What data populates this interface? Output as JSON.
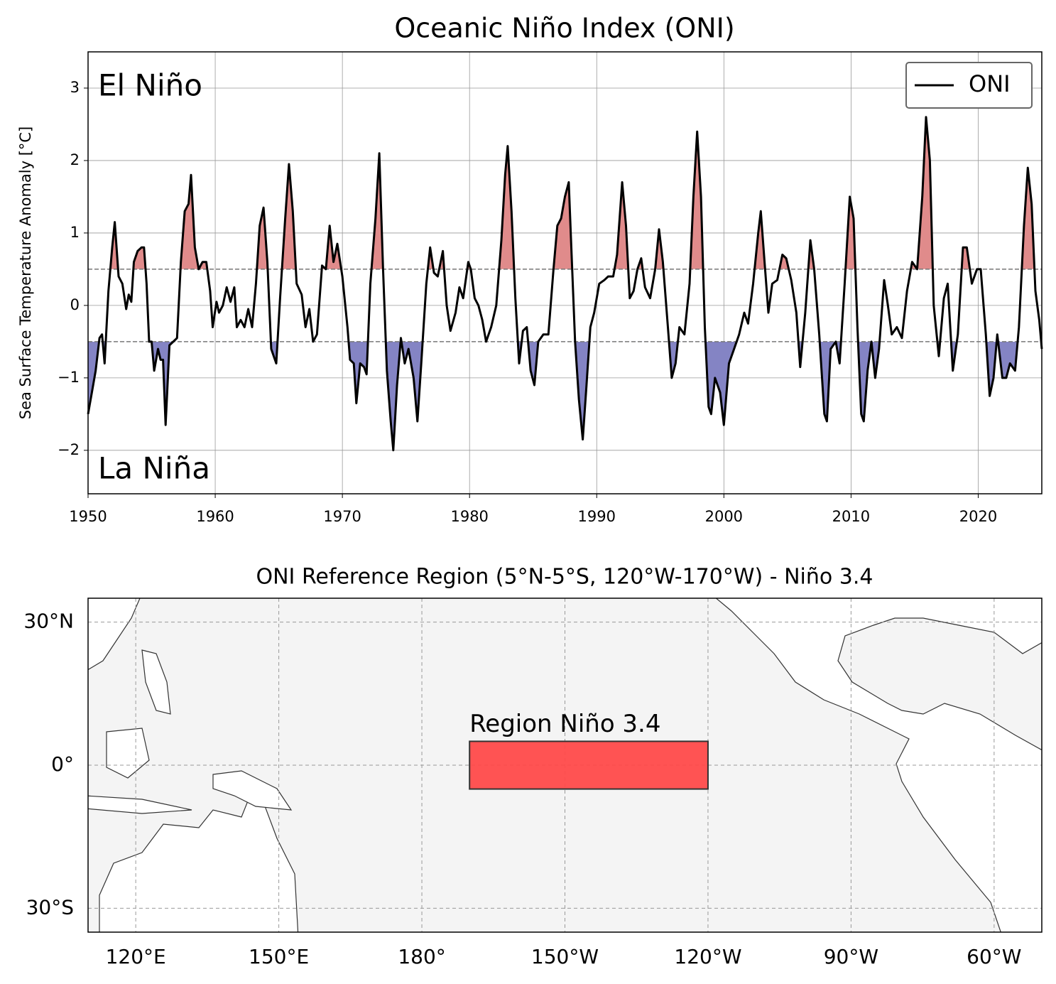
{
  "chart_data": [
    {
      "type": "line",
      "title": "Oceanic Niño Index (ONI)",
      "y_label": "Sea Surface Temperature Anomaly [°C]",
      "annotations": {
        "el_nino": "El Niño",
        "la_nina": "La Niña"
      },
      "xlim": [
        1950,
        2025
      ],
      "xticks": [
        1950,
        1960,
        1970,
        1980,
        1990,
        2000,
        2010,
        2020
      ],
      "ylim": [
        -2.6,
        3.5
      ],
      "yticks": [
        {
          "value": -2,
          "label": "−2"
        },
        {
          "value": -1,
          "label": "−1"
        },
        0,
        1,
        2,
        3
      ],
      "grid": true,
      "legend": "upper right",
      "thresholds": [
        0.5,
        -0.5
      ],
      "fill_colors": {
        "above": "#e08b8b",
        "below": "#8484c4"
      },
      "x": [
        1950.0,
        1950.3,
        1950.6,
        1950.9,
        1951.1,
        1951.3,
        1951.6,
        1951.9,
        1952.1,
        1952.4,
        1952.7,
        1953.0,
        1953.2,
        1953.4,
        1953.6,
        1953.9,
        1954.2,
        1954.4,
        1954.6,
        1954.8,
        1955.0,
        1955.2,
        1955.5,
        1955.7,
        1955.9,
        1956.1,
        1956.4,
        1956.7,
        1957.0,
        1957.3,
        1957.6,
        1957.9,
        1958.1,
        1958.4,
        1958.7,
        1959.0,
        1959.3,
        1959.6,
        1959.8,
        1960.1,
        1960.3,
        1960.6,
        1960.9,
        1961.2,
        1961.5,
        1961.7,
        1962.0,
        1962.3,
        1962.6,
        1962.9,
        1963.2,
        1963.5,
        1963.8,
        1964.1,
        1964.4,
        1964.8,
        1965.1,
        1965.5,
        1965.8,
        1966.1,
        1966.4,
        1966.8,
        1967.1,
        1967.4,
        1967.7,
        1968.0,
        1968.4,
        1968.7,
        1969.0,
        1969.3,
        1969.6,
        1970.0,
        1970.4,
        1970.6,
        1970.9,
        1971.1,
        1971.4,
        1971.7,
        1971.9,
        1972.2,
        1972.6,
        1972.9,
        1973.2,
        1973.5,
        1973.8,
        1974.0,
        1974.3,
        1974.6,
        1974.9,
        1975.2,
        1975.6,
        1975.9,
        1976.2,
        1976.6,
        1976.9,
        1977.2,
        1977.5,
        1977.9,
        1978.2,
        1978.5,
        1978.9,
        1979.2,
        1979.5,
        1979.9,
        1980.1,
        1980.4,
        1980.7,
        1981.0,
        1981.3,
        1981.7,
        1982.1,
        1982.5,
        1982.8,
        1983.0,
        1983.3,
        1983.6,
        1983.9,
        1984.2,
        1984.5,
        1984.8,
        1985.1,
        1985.4,
        1985.8,
        1986.2,
        1986.6,
        1986.9,
        1987.2,
        1987.5,
        1987.8,
        1988.0,
        1988.3,
        1988.6,
        1988.9,
        1989.2,
        1989.5,
        1989.8,
        1990.2,
        1990.6,
        1990.9,
        1991.3,
        1991.6,
        1992.0,
        1992.3,
        1992.6,
        1992.9,
        1993.2,
        1993.5,
        1993.8,
        1994.2,
        1994.6,
        1994.9,
        1995.2,
        1995.6,
        1995.9,
        1996.2,
        1996.5,
        1996.9,
        1997.3,
        1997.6,
        1997.9,
        1998.2,
        1998.5,
        1998.8,
        1999.0,
        1999.3,
        1999.7,
        2000.0,
        2000.4,
        2000.8,
        2001.2,
        2001.6,
        2001.9,
        2002.3,
        2002.7,
        2002.9,
        2003.2,
        2003.5,
        2003.8,
        2004.2,
        2004.6,
        2004.9,
        2005.3,
        2005.7,
        2006.0,
        2006.4,
        2006.8,
        2007.1,
        2007.5,
        2007.9,
        2008.1,
        2008.4,
        2008.8,
        2009.1,
        2009.5,
        2009.9,
        2010.2,
        2010.5,
        2010.8,
        2011.0,
        2011.3,
        2011.6,
        2011.9,
        2012.2,
        2012.6,
        2012.9,
        2013.2,
        2013.6,
        2014.0,
        2014.4,
        2014.8,
        2015.2,
        2015.6,
        2015.9,
        2016.2,
        2016.5,
        2016.9,
        2017.3,
        2017.6,
        2018.0,
        2018.4,
        2018.8,
        2019.1,
        2019.5,
        2019.9,
        2020.2,
        2020.6,
        2020.9,
        2021.2,
        2021.5,
        2021.9,
        2022.2,
        2022.5,
        2022.9,
        2023.2,
        2023.6,
        2023.9,
        2024.2,
        2024.5,
        2024.8,
        2025.0
      ],
      "series": [
        {
          "name": "ONI",
          "color": "#000000",
          "values": [
            -1.5,
            -1.2,
            -0.9,
            -0.45,
            -0.4,
            -0.8,
            0.2,
            0.8,
            1.15,
            0.4,
            0.3,
            -0.05,
            0.15,
            0.05,
            0.6,
            0.75,
            0.8,
            0.8,
            0.3,
            -0.5,
            -0.5,
            -0.9,
            -0.6,
            -0.75,
            -0.75,
            -1.65,
            -0.55,
            -0.5,
            -0.45,
            0.6,
            1.3,
            1.4,
            1.8,
            0.8,
            0.5,
            0.6,
            0.6,
            0.2,
            -0.3,
            0.05,
            -0.1,
            0.0,
            0.25,
            0.05,
            0.25,
            -0.3,
            -0.2,
            -0.3,
            -0.05,
            -0.3,
            0.3,
            1.1,
            1.35,
            0.6,
            -0.6,
            -0.8,
            0.1,
            1.2,
            1.95,
            1.3,
            0.3,
            0.15,
            -0.3,
            -0.05,
            -0.5,
            -0.4,
            0.55,
            0.5,
            1.1,
            0.6,
            0.85,
            0.4,
            -0.3,
            -0.75,
            -0.8,
            -1.35,
            -0.8,
            -0.85,
            -0.95,
            0.3,
            1.2,
            2.1,
            0.5,
            -0.9,
            -1.6,
            -2.0,
            -1.1,
            -0.45,
            -0.8,
            -0.6,
            -1.0,
            -1.6,
            -0.8,
            0.3,
            0.8,
            0.45,
            0.4,
            0.75,
            0.0,
            -0.35,
            -0.1,
            0.25,
            0.1,
            0.6,
            0.5,
            0.1,
            0.0,
            -0.2,
            -0.5,
            -0.3,
            0.0,
            0.9,
            1.8,
            2.2,
            1.3,
            0.1,
            -0.8,
            -0.35,
            -0.3,
            -0.9,
            -1.1,
            -0.5,
            -0.4,
            -0.4,
            0.5,
            1.1,
            1.2,
            1.5,
            1.7,
            0.8,
            -0.5,
            -1.3,
            -1.85,
            -1.1,
            -0.3,
            -0.1,
            0.3,
            0.35,
            0.4,
            0.4,
            0.7,
            1.7,
            1.1,
            0.1,
            0.2,
            0.5,
            0.65,
            0.25,
            0.1,
            0.5,
            1.05,
            0.6,
            -0.3,
            -1.0,
            -0.8,
            -0.3,
            -0.4,
            0.3,
            1.5,
            2.4,
            1.5,
            -0.3,
            -1.4,
            -1.5,
            -1.0,
            -1.2,
            -1.65,
            -0.8,
            -0.6,
            -0.4,
            -0.1,
            -0.25,
            0.3,
            1.0,
            1.3,
            0.6,
            -0.1,
            0.3,
            0.35,
            0.7,
            0.65,
            0.35,
            -0.1,
            -0.85,
            -0.1,
            0.9,
            0.5,
            -0.4,
            -1.5,
            -1.6,
            -0.6,
            -0.5,
            -0.8,
            0.3,
            1.5,
            1.2,
            -0.3,
            -1.5,
            -1.6,
            -0.9,
            -0.5,
            -1.0,
            -0.6,
            0.35,
            0.0,
            -0.4,
            -0.3,
            -0.45,
            0.2,
            0.6,
            0.5,
            1.5,
            2.6,
            2.0,
            0.0,
            -0.7,
            0.1,
            0.3,
            -0.9,
            -0.4,
            0.8,
            0.8,
            0.3,
            0.5,
            0.5,
            -0.4,
            -1.25,
            -1.0,
            -0.4,
            -1.0,
            -1.0,
            -0.8,
            -0.9,
            -0.3,
            1.1,
            1.9,
            1.4,
            0.2,
            -0.2,
            -0.6
          ]
        }
      ]
    },
    {
      "type": "map",
      "title": "ONI Reference Region (5°N-5°S, 120°W-170°W) - Niño 3.4",
      "xlim": [
        110,
        310
      ],
      "xticks": [
        {
          "value": 120,
          "label": "120°E"
        },
        {
          "value": 150,
          "label": "150°E"
        },
        {
          "value": 180,
          "label": "180°"
        },
        {
          "value": 210,
          "label": "150°W"
        },
        {
          "value": 240,
          "label": "120°W"
        },
        {
          "value": 270,
          "label": "90°W"
        },
        {
          "value": 300,
          "label": "60°W"
        }
      ],
      "ylim": [
        -35,
        35
      ],
      "yticks": [
        {
          "value": 30,
          "label": "30°N"
        },
        {
          "value": 0,
          "label": "0°"
        },
        {
          "value": -30,
          "label": "30°S"
        }
      ],
      "grid": true,
      "region": {
        "label": "Region Niño 3.4",
        "lon": [
          190,
          240
        ],
        "lat": [
          -5,
          5
        ],
        "color": "#ff4a4a"
      }
    }
  ]
}
